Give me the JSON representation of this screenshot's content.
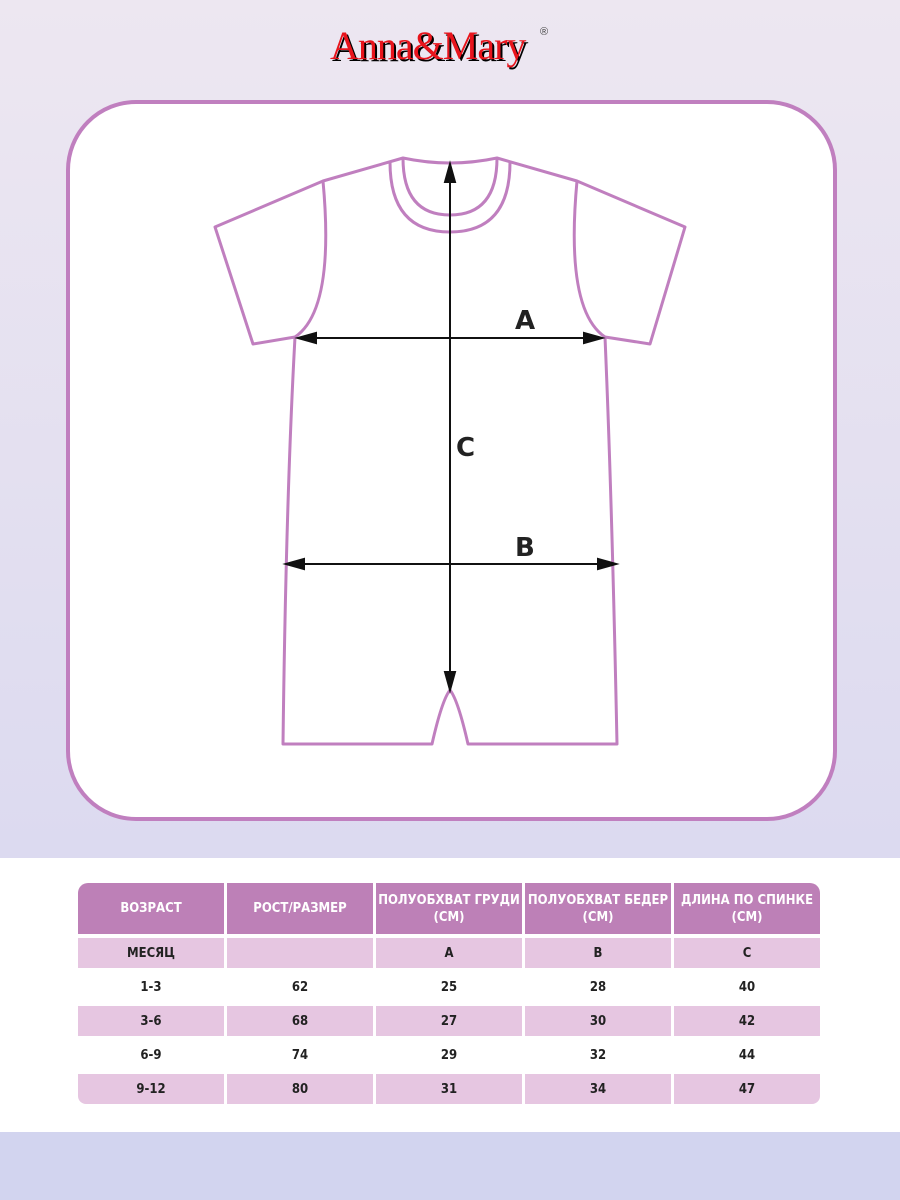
{
  "brand": {
    "logo_text": "Anna&Mary",
    "registered_mark": "®",
    "logo_color": "#e8141c"
  },
  "diagram": {
    "labels": {
      "a": "A",
      "b": "B",
      "c": "C"
    },
    "outline_color": "#c07fbf"
  },
  "size_table": {
    "headers": [
      "ВОЗРАСТ",
      "РОСТ/РАЗМЕР",
      "ПОЛУОБХВАТ ГРУДИ (СМ)",
      "ПОЛУОБХВАТ БЕДЕР (СМ)",
      "ДЛИНА ПО СПИНКЕ (СМ)"
    ],
    "subheader": [
      "МЕСЯЦ",
      "",
      "A",
      "B",
      "C"
    ],
    "rows": [
      [
        "1-3",
        "62",
        "25",
        "28",
        "40"
      ],
      [
        "3-6",
        "68",
        "27",
        "30",
        "42"
      ],
      [
        "6-9",
        "74",
        "29",
        "32",
        "44"
      ],
      [
        "9-12",
        "80",
        "31",
        "34",
        "47"
      ]
    ],
    "header_color": "#bd80b7",
    "stripe_color": "#e6c6e1"
  }
}
